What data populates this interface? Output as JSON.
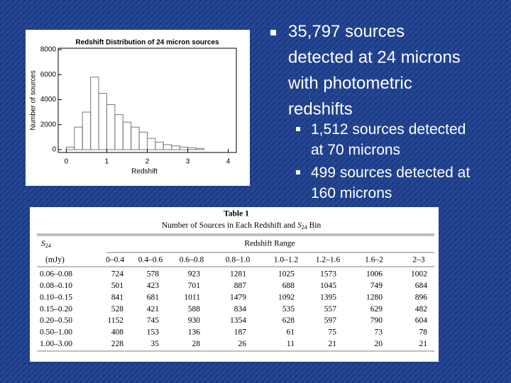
{
  "chart_data": {
    "type": "histogram",
    "title": "Redshift Distribution of 24 micron sources",
    "x_label": "Redshift",
    "y_label": "Number of sources",
    "bins": [
      0.0,
      0.2,
      0.4,
      0.6,
      0.8,
      1.0,
      1.2,
      1.4,
      1.6,
      1.8,
      2.0,
      2.2,
      2.4,
      2.6,
      2.8,
      3.0,
      3.2,
      3.4
    ],
    "counts": [
      200,
      1800,
      3000,
      5800,
      4500,
      3600,
      2800,
      2200,
      1800,
      1400,
      900,
      600,
      400,
      300,
      200,
      150,
      100
    ],
    "color": "#777777",
    "xlim": [
      -0.2,
      4.2
    ],
    "ylim": [
      -230,
      8110
    ],
    "xticks": [
      0,
      1,
      2,
      3,
      4
    ],
    "yticks": [
      0,
      2000,
      4000,
      6000,
      8000
    ]
  },
  "bullets": {
    "main": "35,797 sources detected at 24 microns with photometric redshifts",
    "sub": [
      "1,512 sources detected at 70 microns",
      "499 sources detected at 160 microns"
    ]
  },
  "table": {
    "title": "Table 1",
    "caption": "Number of Sources in Each Redshift and ",
    "caption_symbol": "S",
    "caption_sub": "24",
    "caption_end": " Bin",
    "row_head_symbol": "S",
    "row_head_sub": "24",
    "row_head_unit": "(mJy)",
    "group_head": "Redshift Range",
    "columns": [
      "0–0.4",
      "0.4–0.6",
      "0.6–0.8",
      "0.8–1.0",
      "1.0–1.2",
      "1.2–1.6",
      "1.6–2",
      "2–3"
    ],
    "rows": [
      [
        "0.06–0.08",
        "724",
        "578",
        "923",
        "1281",
        "1025",
        "1573",
        "1006",
        "1002"
      ],
      [
        "0.08–0.10",
        "501",
        "423",
        "701",
        "887",
        "688",
        "1045",
        "749",
        "684"
      ],
      [
        "0.10–0.15",
        "841",
        "681",
        "1011",
        "1479",
        "1092",
        "1395",
        "1280",
        "896"
      ],
      [
        "0.15–0.20",
        "528",
        "421",
        "588",
        "834",
        "535",
        "557",
        "629",
        "482"
      ],
      [
        "0.20–0.50",
        "1152",
        "745",
        "930",
        "1354",
        "628",
        "597",
        "790",
        "604"
      ],
      [
        "0.50–1.00",
        "408",
        "153",
        "136",
        "187",
        "61",
        "75",
        "73",
        "78"
      ],
      [
        "1.00–3.00",
        "228",
        "35",
        "28",
        "26",
        "11",
        "21",
        "20",
        "21"
      ]
    ]
  }
}
